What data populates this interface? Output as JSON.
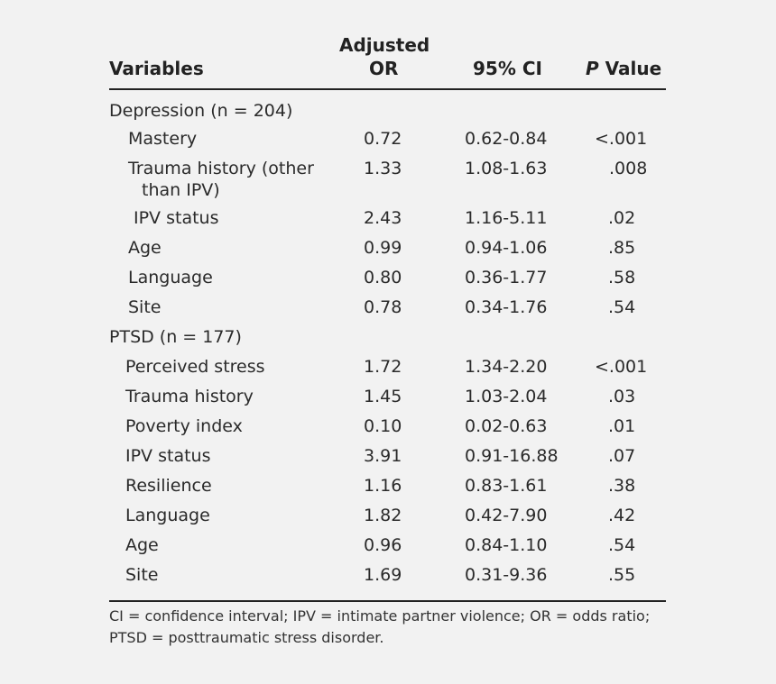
{
  "table": {
    "headers": {
      "variables": "Variables",
      "or_line1": "Adjusted",
      "or_line2": "OR",
      "ci": "95% CI",
      "p_italic": "P",
      "p_rest": " Value"
    },
    "depression_group": "Depression (n = 204)",
    "depression_rows": [
      {
        "variable": "Mastery",
        "or": "0.72",
        "ci": "0.62-0.84",
        "p": "<.001"
      },
      {
        "variable": "Trauma history (other",
        "variable_line2": "than IPV)",
        "or": "1.33",
        "ci": "1.08-1.63",
        "p": ".008"
      },
      {
        "variable": "IPV status",
        "or": "2.43",
        "ci": "1.16-5.11",
        "p": ".02"
      },
      {
        "variable": "Age",
        "or": "0.99",
        "ci": "0.94-1.06",
        "p": ".85"
      },
      {
        "variable": "Language",
        "or": "0.80",
        "ci": "0.36-1.77",
        "p": ".58"
      },
      {
        "variable": "Site",
        "or": "0.78",
        "ci": "0.34-1.76",
        "p": ".54"
      }
    ],
    "ptsd_group": "PTSD (n = 177)",
    "ptsd_rows": [
      {
        "variable": "Perceived stress",
        "or": "1.72",
        "ci": "1.34-2.20",
        "p": "<.001"
      },
      {
        "variable": "Trauma history",
        "or": "1.45",
        "ci": "1.03-2.04",
        "p": ".03"
      },
      {
        "variable": "Poverty index",
        "or": "0.10",
        "ci": "0.02-0.63",
        "p": ".01"
      },
      {
        "variable": "IPV status",
        "or": "3.91",
        "ci": "0.91-16.88",
        "p": ".07"
      },
      {
        "variable": "Resilience",
        "or": "1.16",
        "ci": "0.83-1.61",
        "p": ".38"
      },
      {
        "variable": "Language",
        "or": "1.82",
        "ci": "0.42-7.90",
        "p": ".42"
      },
      {
        "variable": "Age",
        "or": "0.96",
        "ci": "0.84-1.10",
        "p": ".54"
      },
      {
        "variable": "Site",
        "or": "1.69",
        "ci": "0.31-9.36",
        "p": ".55"
      }
    ]
  },
  "footnote": {
    "line1": "CI = confidence interval; IPV = intimate partner violence; OR = odds ratio;",
    "line2": "PTSD = posttraumatic stress disorder."
  }
}
